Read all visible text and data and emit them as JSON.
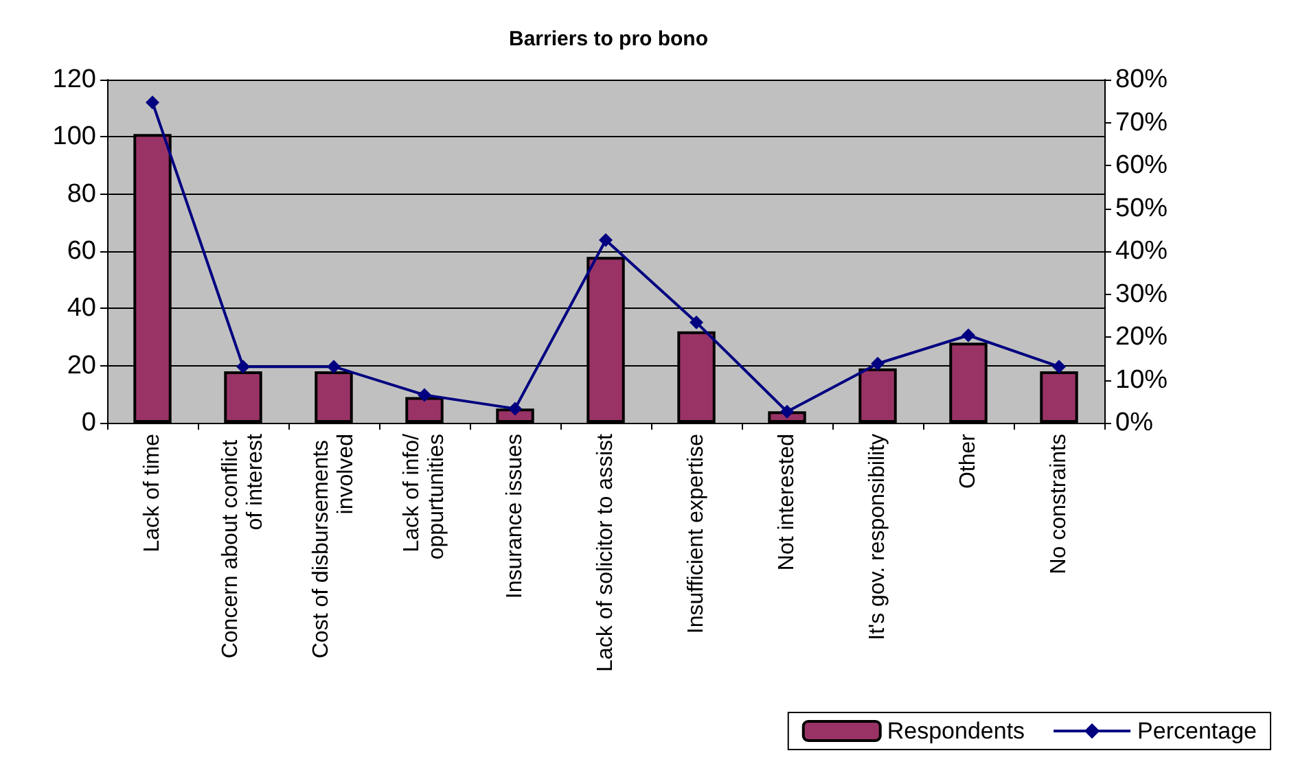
{
  "chart_data": {
    "type": "bar",
    "title": "Barriers to pro bono",
    "categories": [
      "Lack of time",
      "Concern about conflict of interest",
      "Cost of disbursements involved",
      "Lack of info/oppurtunities",
      "Insurance issues",
      "Lack of solicitor to assist",
      "Insufficient expertise",
      "Not interested",
      "It's gov. responsibility",
      "Other",
      "No constraints"
    ],
    "series": [
      {
        "name": "Respondents",
        "color": "#993366",
        "values": [
          101,
          18,
          18,
          9,
          5,
          58,
          32,
          4,
          19,
          28,
          18
        ]
      },
      {
        "name": "Percentage",
        "type": "line",
        "axis": "y2",
        "color": "#000080",
        "marker": "diamond",
        "values": [
          74.7,
          13.1,
          13.1,
          6.5,
          3.3,
          42.6,
          23.4,
          2.6,
          13.8,
          20.4,
          13.1
        ]
      }
    ],
    "ylim": [
      0,
      120
    ],
    "yticks": [
      0,
      20,
      40,
      60,
      80,
      100,
      120
    ],
    "y2lim": [
      0,
      80
    ],
    "y2ticks": [
      {
        "value": 0,
        "label": "0%"
      },
      {
        "value": 10,
        "label": "10%"
      },
      {
        "value": 20,
        "label": "20%"
      },
      {
        "value": 30,
        "label": "30%"
      },
      {
        "value": 40,
        "label": "40%"
      },
      {
        "value": 50,
        "label": "50%"
      },
      {
        "value": 60,
        "label": "60%"
      },
      {
        "value": 70,
        "label": "70%"
      },
      {
        "value": 80,
        "label": "80%"
      }
    ],
    "grid": "y",
    "legend": "bottom right"
  }
}
